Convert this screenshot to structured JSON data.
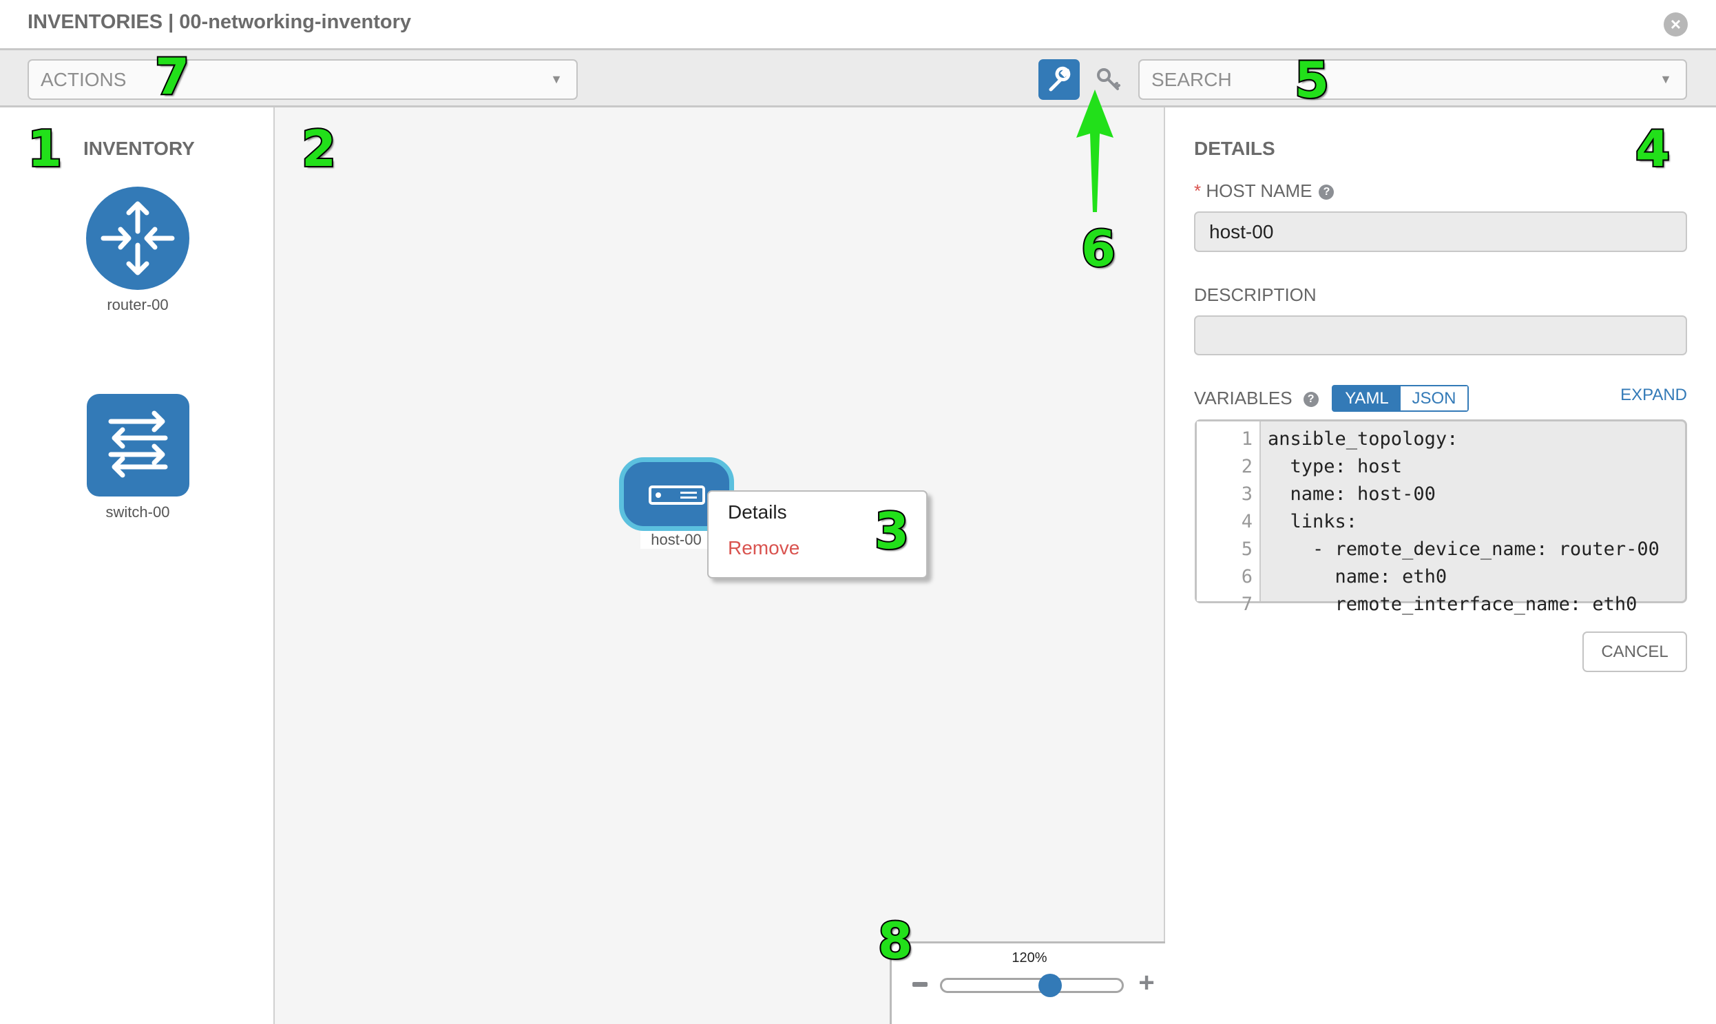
{
  "header": {
    "title": "INVENTORIES | 00-networking-inventory",
    "close_icon": "close-circle-icon"
  },
  "toolbar": {
    "actions_placeholder": "ACTIONS",
    "search_placeholder": "SEARCH",
    "wrench_icon": "wrench-icon",
    "key_icon": "key-icon"
  },
  "inventory": {
    "title": "INVENTORY",
    "items": [
      {
        "label": "router-00",
        "icon": "router-icon"
      },
      {
        "label": "switch-00",
        "icon": "switch-icon"
      }
    ]
  },
  "canvas": {
    "host": {
      "label": "host-00",
      "icon": "server-icon"
    },
    "context_menu": {
      "details": "Details",
      "remove": "Remove",
      "remove_color": "#d9534f"
    },
    "zoom": {
      "value_label": "120%",
      "slider_fraction": 0.6
    }
  },
  "details": {
    "title": "DETAILS",
    "host_name_label": "HOST NAME",
    "required_mark": "*",
    "host_name_value": "host-00",
    "description_label": "DESCRIPTION",
    "description_value": "",
    "variables_label": "VARIABLES",
    "yaml": "YAML",
    "json": "JSON",
    "expand": "EXPAND",
    "cancel": "CANCEL",
    "code_lines": [
      {
        "n": "1",
        "text": "ansible_topology:"
      },
      {
        "n": "2",
        "text": "  type: host"
      },
      {
        "n": "3",
        "text": "  name: host-00"
      },
      {
        "n": "4",
        "text": "  links:"
      },
      {
        "n": "5",
        "text": "    - remote_device_name: router-00"
      },
      {
        "n": "6",
        "text": "      name: eth0"
      },
      {
        "n": "7",
        "text": "      remote_interface_name: eth0"
      }
    ]
  },
  "annotations": [
    "1",
    "2",
    "3",
    "4",
    "5",
    "6",
    "7",
    "8"
  ],
  "colors": {
    "accent": "#337ab7",
    "node_border": "#5bc0de",
    "annotation": "#22e01a"
  }
}
